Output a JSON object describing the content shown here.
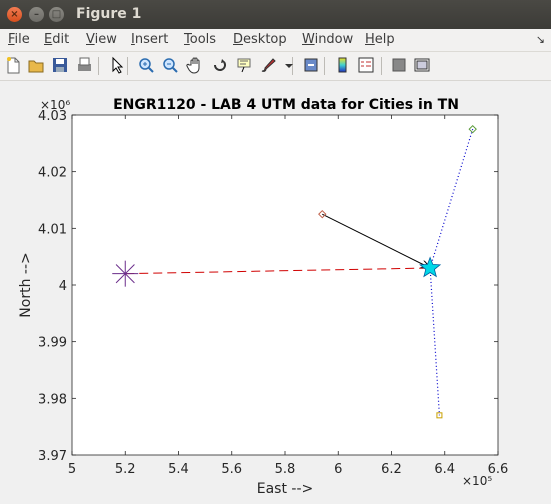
{
  "window": {
    "title": "Figure 1"
  },
  "menu": [
    {
      "label": "File",
      "u": "F",
      "rest": "ile"
    },
    {
      "label": "Edit",
      "u": "E",
      "rest": "dit"
    },
    {
      "label": "View",
      "u": "V",
      "rest": "iew"
    },
    {
      "label": "Insert",
      "u": "I",
      "rest": "nsert"
    },
    {
      "label": "Tools",
      "u": "T",
      "rest": "ools"
    },
    {
      "label": "Desktop",
      "u": "D",
      "rest": "esktop"
    },
    {
      "label": "Window",
      "u": "W",
      "rest": "indow"
    },
    {
      "label": "Help",
      "u": "H",
      "rest": "elp"
    }
  ],
  "toolbar_icons": [
    "new-figure-icon",
    "open-file-icon",
    "save-icon",
    "print-icon",
    "edit-plot-arrow-icon",
    "zoom-in-icon",
    "zoom-out-icon",
    "pan-hand-icon",
    "rotate-3d-icon",
    "data-cursor-icon",
    "brush-icon",
    "brush-dropdown-icon",
    "link-plot-icon",
    "insert-colorbar-icon",
    "insert-legend-icon",
    "hide-plot-tools-icon",
    "show-plot-tools-icon"
  ],
  "chart_data": {
    "type": "line",
    "title": "ENGR1120 - LAB 4 UTM data for Cities in TN",
    "xlabel": "East -->",
    "ylabel": "North -->",
    "xlim": [
      500000,
      660000
    ],
    "ylim": [
      3970000,
      4030000
    ],
    "xticks": [
      "5",
      "5.2",
      "5.4",
      "5.6",
      "5.8",
      "6",
      "6.2",
      "6.4",
      "6.6"
    ],
    "yticks": [
      "3.97",
      "3.98",
      "3.99",
      "4",
      "4.01",
      "4.02",
      "4.03"
    ],
    "x_exponent": "×10⁵",
    "y_exponent": "×10⁶",
    "grid": false,
    "points": [
      {
        "marker": "star",
        "color": "#00d8e8",
        "x": 634500,
        "y": 4003000
      },
      {
        "marker": "asterisk",
        "color": "#6a2c8a",
        "x": 520000,
        "y": 4002000
      },
      {
        "marker": "diamond-small",
        "color": "#c0604a",
        "x": 594000,
        "y": 4012500
      },
      {
        "marker": "diamond-small",
        "color": "#5a9a3a",
        "x": 650500,
        "y": 4027500
      },
      {
        "marker": "square-small",
        "color": "#c8a000",
        "x": 638000,
        "y": 3977000
      }
    ],
    "series": [
      {
        "style": "dashed",
        "color": "#d00000",
        "x": [
          520000,
          634500
        ],
        "y": [
          4002000,
          4003000
        ]
      },
      {
        "style": "solid-arrow",
        "color": "#000000",
        "x": [
          594000,
          634500
        ],
        "y": [
          4012500,
          4003000
        ]
      },
      {
        "style": "dotted",
        "color": "#0000cc",
        "x": [
          650500,
          634500
        ],
        "y": [
          4027500,
          4003000
        ]
      },
      {
        "style": "dotted",
        "color": "#0000cc",
        "x": [
          634500,
          638000
        ],
        "y": [
          4003000,
          3977000
        ]
      }
    ]
  }
}
